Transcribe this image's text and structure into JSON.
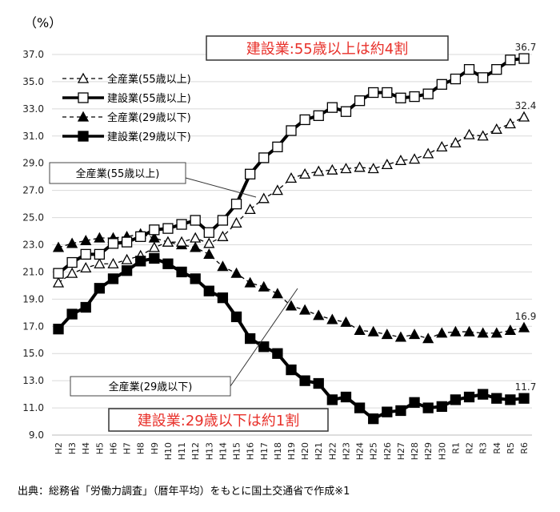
{
  "chart_data": {
    "type": "line",
    "unit_label": "（%）",
    "categories": [
      "H2",
      "H3",
      "H4",
      "H5",
      "H6",
      "H7",
      "H8",
      "H9",
      "H10",
      "H11",
      "H12",
      "H13",
      "H14",
      "H15",
      "H16",
      "H17",
      "H18",
      "H19",
      "H20",
      "H21",
      "H22",
      "H23",
      "H24",
      "H25",
      "H26",
      "H27",
      "H28",
      "H29",
      "H30",
      "R1",
      "R2",
      "R3",
      "R4",
      "R5",
      "R6"
    ],
    "ylim": [
      9.0,
      37.0
    ],
    "yticks": [
      "37.0",
      "35.0",
      "33.0",
      "31.0",
      "29.0",
      "27.0",
      "25.0",
      "23.0",
      "21.0",
      "19.0",
      "17.0",
      "15.0",
      "13.0",
      "11.0",
      "9.0"
    ],
    "grid": true,
    "legend_position": "top-left",
    "series": [
      {
        "name": "全産業(55歳以上)",
        "marker": "open-triangle",
        "line": "dashed",
        "values": [
          20.2,
          20.9,
          21.3,
          21.6,
          21.6,
          21.9,
          22.2,
          22.8,
          23.2,
          23.2,
          23.5,
          23.1,
          23.6,
          24.6,
          25.6,
          26.4,
          27.0,
          27.9,
          28.2,
          28.4,
          28.5,
          28.6,
          28.7,
          28.6,
          28.9,
          29.2,
          29.3,
          29.7,
          30.2,
          30.5,
          31.1,
          31.0,
          31.5,
          31.9,
          32.4
        ],
        "end_label": "32.4"
      },
      {
        "name": "建設業(55歳以上)",
        "marker": "open-square",
        "line": "solid",
        "values": [
          20.9,
          21.7,
          22.3,
          22.3,
          23.1,
          23.2,
          23.6,
          24.1,
          24.2,
          24.5,
          24.8,
          23.9,
          24.8,
          26.0,
          28.2,
          29.4,
          30.2,
          31.4,
          32.2,
          32.5,
          33.1,
          32.8,
          33.6,
          34.2,
          34.2,
          33.8,
          33.9,
          34.1,
          34.8,
          35.2,
          35.9,
          35.3,
          35.9,
          36.6,
          36.7
        ],
        "end_label": "36.7"
      },
      {
        "name": "全産業(29歳以下)",
        "marker": "filled-triangle",
        "line": "dashed",
        "values": [
          22.8,
          23.1,
          23.3,
          23.5,
          23.5,
          23.6,
          23.8,
          23.5,
          23.2,
          23.0,
          22.8,
          22.3,
          21.4,
          20.9,
          20.2,
          19.9,
          19.4,
          18.5,
          18.2,
          17.8,
          17.5,
          17.3,
          16.7,
          16.6,
          16.4,
          16.2,
          16.4,
          16.1,
          16.5,
          16.6,
          16.6,
          16.5,
          16.5,
          16.7,
          16.9
        ],
        "end_label": "16.9"
      },
      {
        "name": "建設業(29歳以下)",
        "marker": "filled-square",
        "line": "solid",
        "values": [
          16.8,
          17.9,
          18.4,
          19.8,
          20.5,
          21.1,
          21.8,
          22.0,
          21.6,
          21.0,
          20.5,
          19.6,
          19.1,
          17.7,
          16.1,
          15.5,
          15.0,
          13.8,
          13.0,
          12.8,
          11.6,
          11.8,
          11.0,
          10.2,
          10.7,
          10.8,
          11.4,
          11.0,
          11.1,
          11.6,
          11.8,
          12.0,
          11.7,
          11.6,
          11.7
        ],
        "end_label": "11.7"
      }
    ],
    "annotations": {
      "callout_55_all": "全産業(55歳以上)",
      "callout_29_all": "全産業(29歳以下)",
      "headline_55": "建設業:55歳以上は約4割",
      "headline_29": "建設業:29歳以下は約1割"
    },
    "headline_color": "#e8302a",
    "source": "出典：総務省「労働力調査」（暦年平均）をもとに国土交通省で作成※1"
  }
}
